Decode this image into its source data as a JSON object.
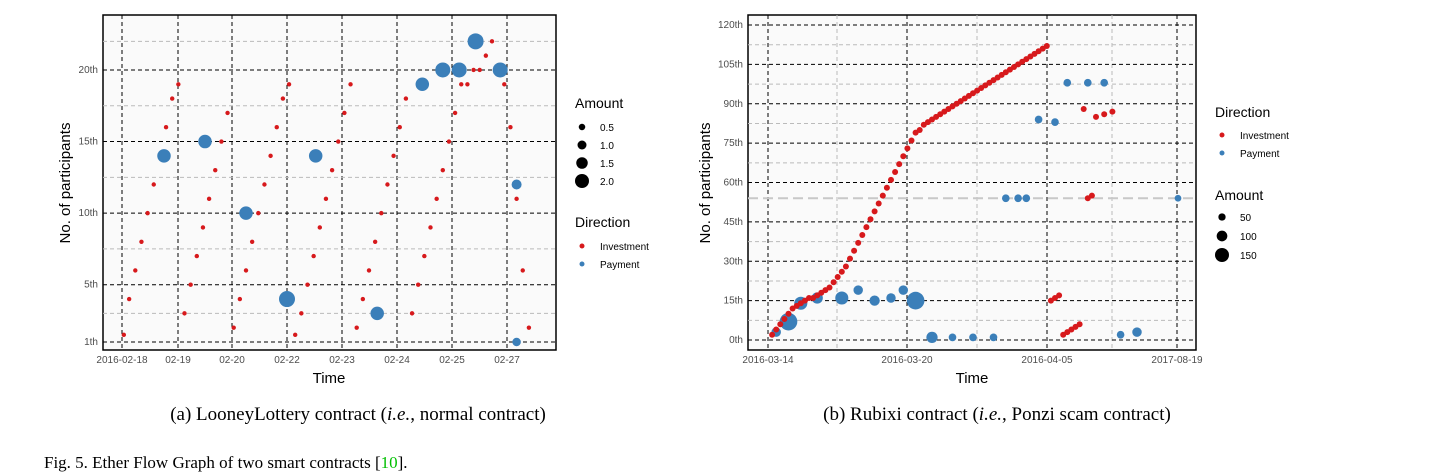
{
  "colors": {
    "investment": "#d7191c",
    "payment": "#3b7fb9",
    "panel": "#fafafa",
    "grid": "#000000"
  },
  "chart_data": [
    {
      "type": "scatter",
      "xlabel": "Time",
      "ylabel": "No. of participants",
      "x_ticks": [
        "2016-02-18",
        "02-19",
        "02-20",
        "02-22",
        "02-23",
        "02-24",
        "02-25",
        "02-27"
      ],
      "y_ticks": [
        "1th",
        "5th",
        "10th",
        "15th",
        "20th"
      ],
      "caption_prefix": "(a) LooneyLottery contract (",
      "caption_em": "i.e.",
      "caption_suffix": ", normal contract)",
      "legend_amount_title": "Amount",
      "legend_amount": [
        {
          "label": "0.5",
          "size": 0.5
        },
        {
          "label": "1.0",
          "size": 1.0
        },
        {
          "label": "1.5",
          "size": 1.5
        },
        {
          "label": "2.0",
          "size": 2.0
        }
      ],
      "legend_direction_title": "Direction",
      "legend_direction": [
        "Investment",
        "Payment"
      ],
      "series": [
        {
          "name": "Investment",
          "x": [
            0.2,
            1.5,
            3.0,
            4.5,
            6.0,
            7.5,
            9.0,
            10.5,
            12.0,
            13.5,
            15.0,
            16.5,
            18.0,
            19.5,
            21.0,
            22.5,
            24.0,
            25.5,
            27.0,
            28.5,
            30.0,
            31.5,
            33.0,
            34.5,
            36.0,
            37.5,
            39.0,
            40.5,
            42.0,
            43.5,
            45.0,
            46.5,
            48.0,
            49.5,
            51.0,
            52.5,
            54.0,
            55.5,
            57.0,
            58.5,
            60.0,
            61.5,
            63.0,
            64.5,
            66.0,
            67.5,
            69.0,
            70.5,
            72.0,
            73.5,
            75.0,
            76.5,
            78.0,
            79.5,
            81.0,
            82.5,
            84.0,
            85.5,
            87.0,
            88.5,
            90.0,
            91.5,
            93.0,
            94.5,
            96.0,
            97.5,
            99.0
          ],
          "y": [
            1.5,
            4,
            6,
            8,
            10,
            12,
            14,
            16,
            18,
            19,
            3,
            5,
            7,
            9,
            11,
            13,
            15,
            17,
            2,
            4,
            6,
            8,
            10,
            12,
            14,
            16,
            18,
            19,
            1.5,
            3,
            5,
            7,
            9,
            11,
            13,
            15,
            17,
            19,
            2,
            4,
            6,
            8,
            10,
            12,
            14,
            16,
            18,
            3,
            5,
            7,
            9,
            11,
            13,
            15,
            17,
            19,
            19,
            20,
            20,
            21,
            22,
            20,
            19,
            16,
            11,
            6,
            2
          ]
        },
        {
          "name": "Payment",
          "x": [
            10,
            20,
            30,
            40,
            47,
            62,
            73,
            78,
            82,
            86,
            92,
            96,
            96
          ],
          "y": [
            14,
            15,
            10,
            4,
            14,
            3,
            19,
            20,
            20,
            22,
            20,
            12,
            1
          ],
          "sizes": [
            1.5,
            1.5,
            1.5,
            2.0,
            1.5,
            1.5,
            1.5,
            1.8,
            1.8,
            2.0,
            1.8,
            0.8,
            0.5
          ]
        }
      ]
    },
    {
      "type": "scatter",
      "xlabel": "Time",
      "ylabel": "No. of participants",
      "x_ticks": [
        "2016-03-14",
        "2016-03-20",
        "2016-04-05",
        "2017-08-19"
      ],
      "y_ticks": [
        "0th",
        "15th",
        "30th",
        "45th",
        "60th",
        "75th",
        "90th",
        "105th",
        "120th"
      ],
      "caption_prefix": "(b) Rubixi contract (",
      "caption_em": "i.e.",
      "caption_suffix": ", Ponzi scam contract)",
      "legend_direction_title": "Direction",
      "legend_direction": [
        "Investment",
        "Payment"
      ],
      "legend_amount_title": "Amount",
      "legend_amount": [
        {
          "label": "50",
          "size": 50
        },
        {
          "label": "100",
          "size": 100
        },
        {
          "label": "150",
          "size": 150
        }
      ],
      "series": [
        {
          "name": "Investment",
          "x": [
            1,
            2,
            3,
            4,
            5,
            6,
            7,
            8,
            9,
            10,
            11,
            12,
            13,
            14,
            15,
            16,
            17,
            18,
            19,
            20,
            21,
            22,
            23,
            24,
            25,
            26,
            27,
            28,
            29,
            30,
            31,
            32,
            33,
            34,
            35,
            36,
            37,
            38,
            39,
            40,
            41,
            42,
            43,
            44,
            45,
            46,
            47,
            48,
            49,
            50,
            51,
            52,
            53,
            54,
            55,
            56,
            57,
            58,
            59,
            60,
            61,
            62,
            63,
            64,
            65,
            66,
            67,
            68,
            69,
            70,
            71,
            72,
            73,
            74,
            75,
            76,
            77,
            78,
            79,
            80,
            82,
            84
          ],
          "y": [
            2,
            4,
            6,
            8,
            10,
            12,
            13,
            14,
            15,
            16,
            16,
            17,
            18,
            19,
            20,
            22,
            24,
            26,
            28,
            31,
            34,
            37,
            40,
            43,
            46,
            49,
            52,
            55,
            58,
            61,
            64,
            67,
            70,
            73,
            76,
            79,
            80,
            82,
            83,
            84,
            85,
            86,
            87,
            88,
            89,
            90,
            91,
            92,
            93,
            94,
            95,
            96,
            97,
            98,
            99,
            100,
            101,
            102,
            103,
            104,
            105,
            106,
            107,
            108,
            109,
            110,
            111,
            112,
            15,
            16,
            17,
            2,
            3,
            4,
            5,
            6,
            88,
            54,
            55,
            85,
            86,
            87
          ]
        },
        {
          "name": "Payment",
          "x": [
            2,
            5,
            8,
            12,
            18,
            22,
            26,
            30,
            33,
            36,
            40,
            45,
            50,
            55,
            58,
            61,
            63,
            66,
            70,
            73,
            78,
            82,
            86,
            90,
            100
          ],
          "y": [
            3,
            7,
            14,
            16,
            16,
            19,
            15,
            16,
            19,
            15,
            1,
            1,
            1,
            1,
            54,
            54,
            54,
            84,
            83,
            98,
            98,
            98,
            2,
            3,
            54
          ],
          "sizes": [
            60,
            150,
            100,
            80,
            100,
            60,
            70,
            60,
            60,
            150,
            80,
            40,
            40,
            40,
            40,
            40,
            40,
            40,
            40,
            40,
            40,
            40,
            40,
            60,
            30
          ]
        }
      ]
    }
  ],
  "figure_caption_prefix": "Fig. 5.   Ether Flow Graph of two smart contracts [",
  "figure_caption_ref": "10",
  "figure_caption_suffix": "]."
}
